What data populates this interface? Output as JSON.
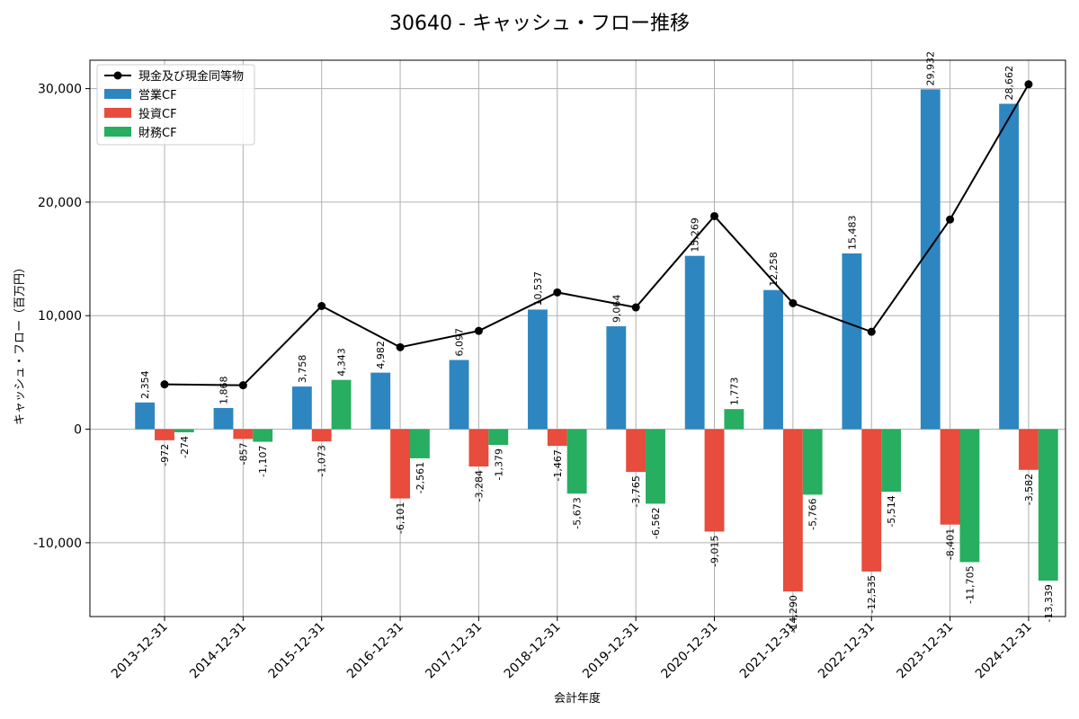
{
  "chart_data": {
    "type": "bar",
    "title": "30640 - キャッシュ・フロー推移",
    "xlabel": "会計年度",
    "ylabel": "キャッシュ・フロー（百万円）",
    "ylim": [
      -16500,
      32500
    ],
    "yticks": [
      -10000,
      0,
      10000,
      20000,
      30000
    ],
    "ytick_labels": [
      "-10,000",
      "0",
      "10,000",
      "20,000",
      "30,000"
    ],
    "grid": true,
    "legend_position": "top-left",
    "categories": [
      "2013-12-31",
      "2014-12-31",
      "2015-12-31",
      "2016-12-31",
      "2017-12-31",
      "2018-12-31",
      "2019-12-31",
      "2020-12-31",
      "2021-12-31",
      "2022-12-31",
      "2023-12-31",
      "2024-12-31"
    ],
    "series": [
      {
        "name": "営業CF",
        "kind": "bar",
        "color": "#2e86c1",
        "values": [
          2354,
          1868,
          3758,
          4982,
          6097,
          10537,
          9064,
          15269,
          12258,
          15483,
          29932,
          28662
        ],
        "labels": [
          "2,354",
          "1,868",
          "3,758",
          "4,982",
          "6,097",
          "10,537",
          "9,064",
          "15,269",
          "12,258",
          "15,483",
          "29,932",
          "28,662"
        ]
      },
      {
        "name": "投資CF",
        "kind": "bar",
        "color": "#e74c3c",
        "values": [
          -972,
          -857,
          -1073,
          -6101,
          -3284,
          -1467,
          -3765,
          -9015,
          -14290,
          -12535,
          -8401,
          -3582
        ],
        "labels": [
          "-972",
          "-857",
          "-1,073",
          "-6,101",
          "-3,284",
          "-1,467",
          "-3,765",
          "-9,015",
          "-14,290",
          "-12,535",
          "-8,401",
          "-3,582"
        ]
      },
      {
        "name": "財務CF",
        "kind": "bar",
        "color": "#27ae60",
        "values": [
          -274,
          -1107,
          4343,
          -2561,
          -1379,
          -5673,
          -6562,
          1773,
          -5766,
          -5514,
          -11705,
          -13339
        ],
        "labels": [
          "-274",
          "-1,107",
          "4,343",
          "-2,561",
          "-1,379",
          "-5,673",
          "-6,562",
          "1,773",
          "-5,766",
          "-5,514",
          "-11,705",
          "-13,339"
        ]
      },
      {
        "name": "現金及び現金同等物",
        "kind": "line",
        "color": "#000000",
        "values": [
          3950,
          3870,
          10850,
          7220,
          8660,
          12050,
          10730,
          18770,
          11100,
          8580,
          18470,
          30380
        ]
      }
    ]
  }
}
